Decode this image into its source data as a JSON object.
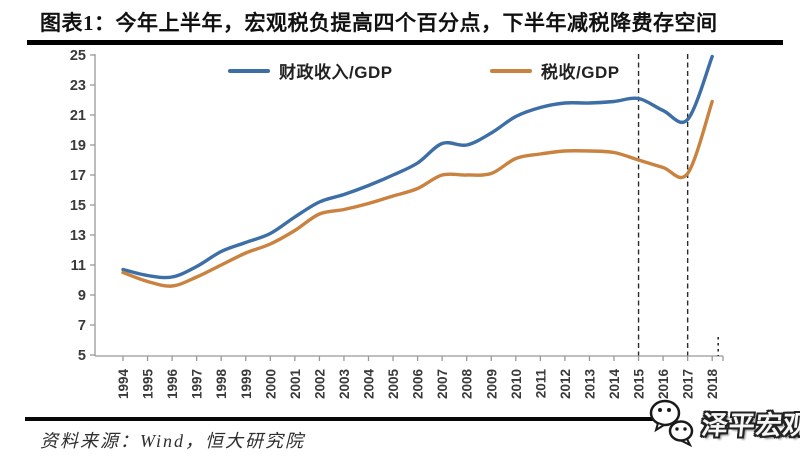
{
  "title": "图表1：今年上半年，宏观税负提高四个百分点，下半年减税降费存空间",
  "source": "资料来源：Wind，恒大研究院",
  "logo": {
    "text": "泽平宏观"
  },
  "legend": [
    {
      "label": "财政收入/GDP",
      "color": "#3d6ea6"
    },
    {
      "label": "税收/GDP",
      "color": "#c9823f"
    }
  ],
  "chart_data": {
    "type": "line",
    "title": "图表1：今年上半年，宏观税负提高四个百分点，下半年减税降费存空间",
    "x": [
      1994,
      1995,
      1996,
      1997,
      1998,
      1999,
      2000,
      2001,
      2002,
      2003,
      2004,
      2005,
      2006,
      2007,
      2008,
      2009,
      2010,
      2011,
      2012,
      2013,
      2014,
      2015,
      2016,
      2017,
      2018
    ],
    "series": [
      {
        "name": "财政收入/GDP",
        "color": "#3d6ea6",
        "values": [
          10.7,
          10.3,
          10.2,
          10.9,
          11.9,
          12.5,
          13.1,
          14.2,
          15.2,
          15.7,
          16.3,
          17.0,
          17.8,
          19.1,
          19.0,
          19.8,
          20.9,
          21.5,
          21.8,
          21.8,
          21.9,
          22.1,
          21.3,
          20.7,
          24.9
        ]
      },
      {
        "name": "税收/GDP",
        "color": "#c9823f",
        "values": [
          10.5,
          9.9,
          9.6,
          10.2,
          11.0,
          11.8,
          12.4,
          13.3,
          14.4,
          14.7,
          15.1,
          15.6,
          16.1,
          17.0,
          17.0,
          17.1,
          18.1,
          18.4,
          18.6,
          18.6,
          18.5,
          18.0,
          17.5,
          17.1,
          21.9
        ]
      }
    ],
    "xlabel": "",
    "ylabel": "",
    "ylim": [
      5,
      25
    ],
    "ytick_step": 2,
    "grid": false,
    "legend_position": "top",
    "annotations": {
      "dashed_vlines_at_years": [
        2015,
        2017
      ],
      "dotted_axis_marker_at_year": 2018
    },
    "axis_color": "#999999",
    "tick_label_color": "#3a3a3a",
    "dashed_line_color": "#2b2b2b"
  }
}
